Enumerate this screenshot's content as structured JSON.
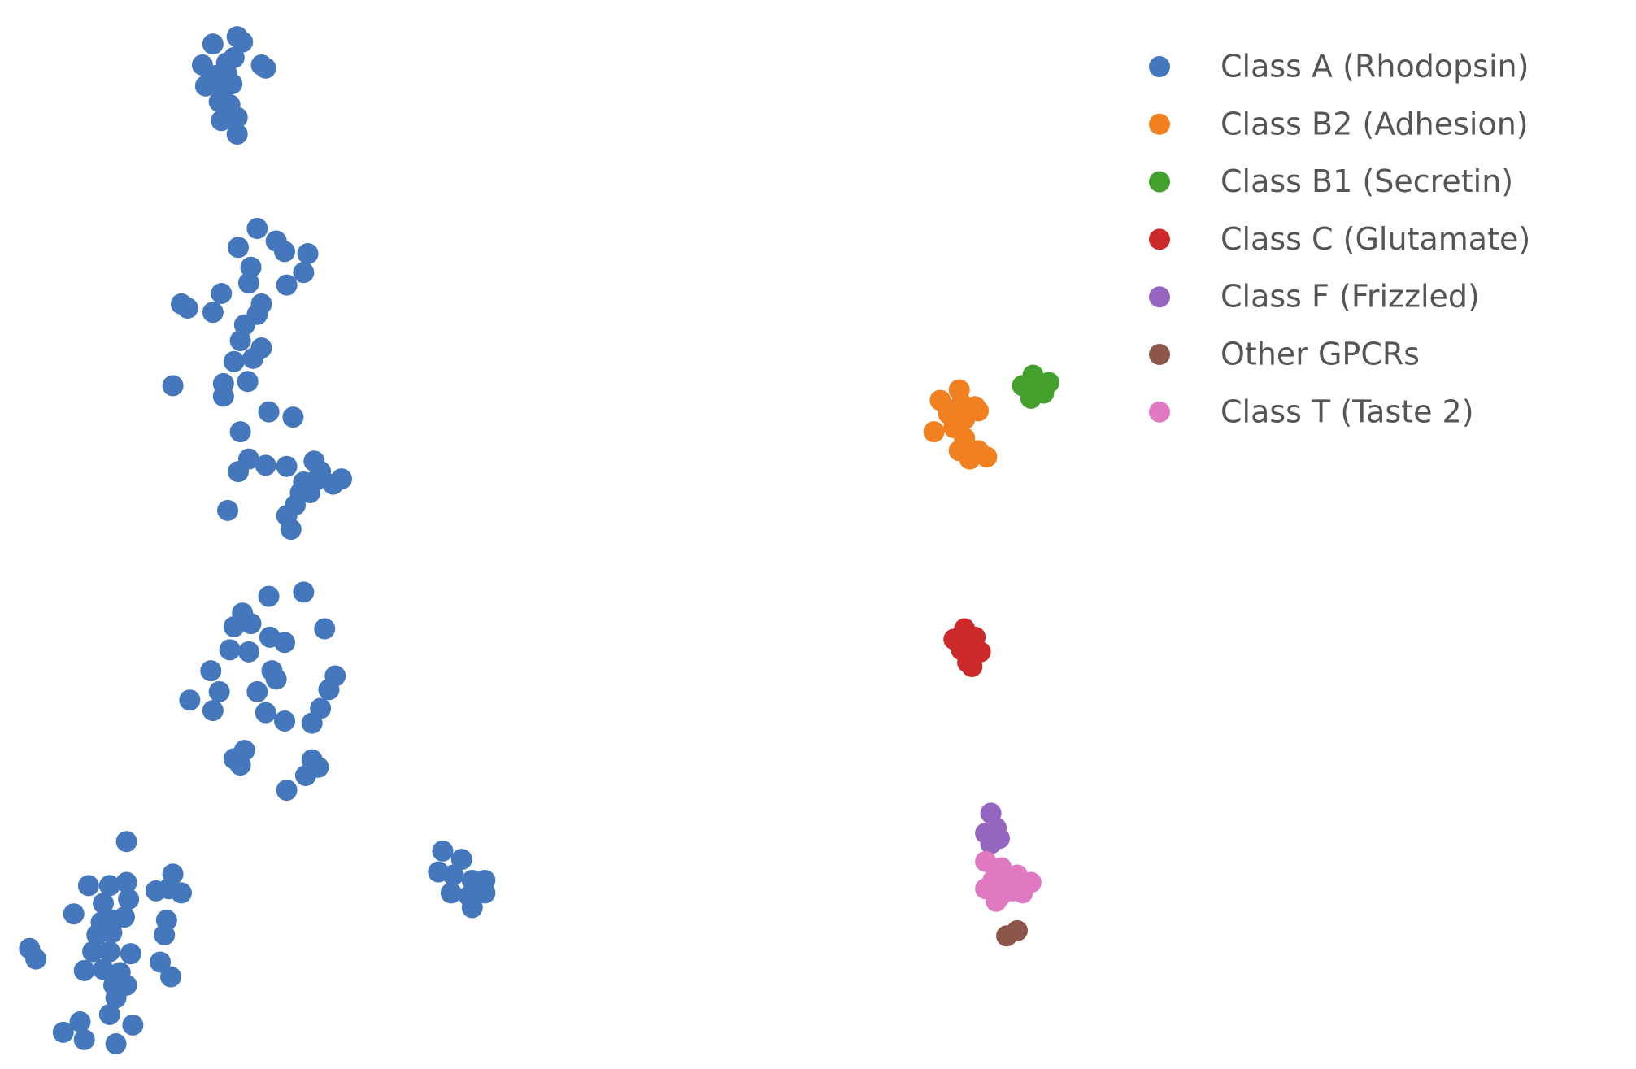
{
  "chart_data": {
    "type": "scatter",
    "xlim": [
      0,
      155.2
    ],
    "ylim": [
      102,
      0
    ],
    "series": [
      {
        "name": "Class A (Rhodopsin)",
        "color": "#4477bb",
        "x": [
          22.5,
          20.2,
          23,
          24.8,
          25.2,
          19.2,
          21.5,
          22.2,
          20.5,
          19.5,
          21,
          22,
          20.8,
          21.8,
          22.5,
          21,
          22.5,
          20,
          21.5,
          24.4,
          22.6,
          26.2,
          27,
          29.2,
          23.8,
          28.8,
          27.2,
          23.6,
          21,
          17.2,
          17.8,
          20.2,
          24.8,
          24.4,
          23.2,
          22.8,
          24.8,
          22.2,
          24,
          16.4,
          21.2,
          23.5,
          21.2,
          25.5,
          27.8,
          22.8,
          23.6,
          25.2,
          27.2,
          22.6,
          29.8,
          28.8,
          30,
          32.4,
          31.6,
          29.4,
          28,
          27.2,
          21.6,
          27.6,
          28.5,
          30.4,
          25.5,
          28.8,
          23,
          23.8,
          22.2,
          30.8,
          25.6,
          27,
          21.8,
          23.6,
          20,
          25.8,
          31.8,
          26.2,
          20.8,
          24.4,
          31.2,
          18,
          20.2,
          25.2,
          30.4,
          27,
          29.6,
          23.2,
          22.8,
          29.6,
          30.2,
          29,
          27.2,
          22.2,
          12,
          16.4,
          8.4,
          10.4,
          12,
          14.8,
          16,
          17.2,
          9.8,
          12.2,
          7,
          9.6,
          10.8,
          11.8,
          15.8,
          9.2,
          10.6,
          15.6,
          2.8,
          8.8,
          10.4,
          12.4,
          3.4,
          15.2,
          8,
          9.8,
          11.4,
          16.2,
          10.8,
          12,
          11,
          10.4,
          7.6,
          12.6,
          6,
          8,
          11,
          42,
          43.8,
          41.6,
          43,
          44.8,
          46,
          42.8,
          44.5,
          46,
          44.8
        ],
        "y": [
          3.5,
          4.2,
          4,
          6.2,
          6.5,
          6.2,
          6,
          5.5,
          7.2,
          8.2,
          8.5,
          8,
          9.7,
          10,
          11.2,
          11.5,
          12.8,
          7.5,
          7,
          21.8,
          23.6,
          23,
          24,
          24.2,
          25.5,
          26,
          27.2,
          27,
          28,
          29,
          29.4,
          29.8,
          29,
          30,
          31,
          32.5,
          33.2,
          34.5,
          34.2,
          36.8,
          36.6,
          36.4,
          37.8,
          39.3,
          39.8,
          41.2,
          43.8,
          44.4,
          44.5,
          45,
          44,
          46,
          45.8,
          45.7,
          46.2,
          47,
          48.2,
          49.2,
          48.7,
          50.5,
          47,
          45,
          56.9,
          56.5,
          58.5,
          59.5,
          59.8,
          60,
          60.8,
          61.3,
          62,
          62.2,
          64,
          64,
          64.5,
          64.8,
          66,
          66,
          65.8,
          66.8,
          67.8,
          68,
          67.6,
          68.8,
          69,
          71.6,
          73,
          72.5,
          73.2,
          74,
          75.4,
          72.4,
          80.3,
          83.4,
          84.5,
          84.5,
          84.2,
          85,
          84.8,
          85.2,
          86.2,
          85.8,
          87.2,
          88,
          87.8,
          87.5,
          87.8,
          89.2,
          89,
          89.2,
          90.5,
          90.8,
          90.8,
          91,
          91.5,
          91.8,
          92.6,
          92.5,
          92.8,
          93.2,
          94,
          94,
          95.2,
          96.8,
          97.5,
          97.8,
          98.5,
          99.2,
          99.6,
          81.2,
          82,
          83.2,
          83.5,
          84,
          84,
          85.2,
          85.5,
          85.2,
          86.6
        ]
      },
      {
        "name": "Class B2 (Adhesion)",
        "color": "#f08020",
        "x": [
          91,
          89.2,
          91.2,
          92.5,
          90,
          91.5,
          92.8,
          90.5,
          88.6,
          91.5,
          91,
          92.8,
          92,
          93.6
        ],
        "y": [
          37.2,
          38.2,
          38.5,
          38.8,
          39.5,
          40,
          39.2,
          40.8,
          41.2,
          41.8,
          43,
          43,
          43.8,
          43.6
        ]
      },
      {
        "name": "Class B1 (Secretin)",
        "color": "#44a02c",
        "x": [
          98,
          99.5,
          97,
          99,
          97.8,
          98.5
        ],
        "y": [
          35.8,
          36.5,
          36.8,
          37.5,
          38,
          37.2
        ]
      },
      {
        "name": "Class C (Glutamate)",
        "color": "#cc2a2a",
        "x": [
          91.5,
          90.5,
          92.5,
          91.2,
          93,
          91.8,
          92.2,
          90.8
        ],
        "y": [
          60,
          61,
          60.8,
          62,
          62.2,
          63.2,
          63.6,
          61.2
        ]
      },
      {
        "name": "Class F (Frizzled)",
        "color": "#9466c0",
        "x": [
          94,
          94.5,
          93.5,
          94.8,
          94
        ],
        "y": [
          77.6,
          79,
          79.5,
          80,
          80.5
        ]
      },
      {
        "name": "Other GPCRs",
        "color": "#8c564b",
        "x": [
          95.5,
          96.5
        ],
        "y": [
          89.3,
          88.8
        ]
      },
      {
        "name": "Class T (Taste 2)",
        "color": "#e078c2",
        "x": [
          93.5,
          95,
          96.5,
          97.8,
          94.2,
          95.5,
          93.5,
          97,
          94.8,
          96,
          94.5
        ],
        "y": [
          82.2,
          82.8,
          83.5,
          84.2,
          84,
          84.5,
          84.8,
          85.2,
          85.6,
          85,
          86
        ]
      }
    ]
  }
}
